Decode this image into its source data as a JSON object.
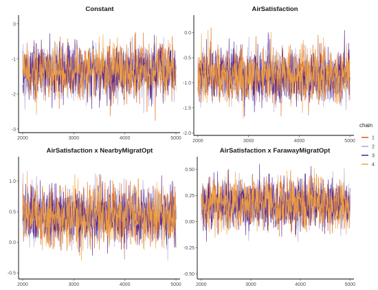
{
  "legend": {
    "title": "chain",
    "items": [
      {
        "label": "1",
        "color": "#d95f0e"
      },
      {
        "label": "2",
        "color": "#a9a2d6"
      },
      {
        "label": "3",
        "color": "#4b1d91"
      },
      {
        "label": "4",
        "color": "#f2a03d"
      }
    ]
  },
  "chart_data": [
    {
      "type": "line",
      "title": "Constant",
      "xlabel": "",
      "ylabel": "",
      "xlim": [
        1920,
        5080
      ],
      "ylim": [
        -3.1,
        0.25
      ],
      "x_ticks": [
        2000,
        3000,
        4000,
        5000
      ],
      "y_ticks": [
        0,
        -1,
        -2,
        -3
      ],
      "x_range": [
        2000,
        5000
      ],
      "draws": 3001,
      "series": [
        {
          "name": "1",
          "color": "#d95f0e",
          "mean": -1.35,
          "sd": 0.38,
          "min": -3.0,
          "max": 0.25
        },
        {
          "name": "2",
          "color": "#a9a2d6",
          "mean": -1.38,
          "sd": 0.37,
          "min": -3.0,
          "max": 0.1
        },
        {
          "name": "3",
          "color": "#4b1d91",
          "mean": -1.37,
          "sd": 0.38,
          "min": -3.05,
          "max": 0.0
        },
        {
          "name": "4",
          "color": "#f2a03d",
          "mean": -1.36,
          "sd": 0.38,
          "min": -2.85,
          "max": 0.15
        }
      ],
      "grid": false
    },
    {
      "type": "line",
      "title": "AirSatisfaction",
      "xlabel": "",
      "ylabel": "",
      "xlim": [
        1920,
        5080
      ],
      "ylim": [
        -2.05,
        0.35
      ],
      "x_ticks": [
        2000,
        3000,
        4000,
        5000
      ],
      "y_ticks": [
        0.0,
        -0.5,
        -1.0,
        -1.5,
        -2.0
      ],
      "x_range": [
        2000,
        5000
      ],
      "draws": 3001,
      "series": [
        {
          "name": "1",
          "color": "#d95f0e",
          "mean": -0.85,
          "sd": 0.27,
          "min": -1.9,
          "max": 0.1
        },
        {
          "name": "2",
          "color": "#a9a2d6",
          "mean": -0.86,
          "sd": 0.27,
          "min": -2.0,
          "max": 0.3
        },
        {
          "name": "3",
          "color": "#4b1d91",
          "mean": -0.85,
          "sd": 0.27,
          "min": -1.95,
          "max": 0.05
        },
        {
          "name": "4",
          "color": "#f2a03d",
          "mean": -0.85,
          "sd": 0.27,
          "min": -1.8,
          "max": 0.05
        }
      ],
      "grid": false
    },
    {
      "type": "line",
      "title": "AirSatisfaction x NearbyMigratOpt",
      "xlabel": "",
      "ylabel": "",
      "xlim": [
        1920,
        5080
      ],
      "ylim": [
        -0.6,
        1.4
      ],
      "x_ticks": [
        2000,
        3000,
        4000,
        5000
      ],
      "y_ticks": [
        1.0,
        0.5,
        0.0,
        -0.5
      ],
      "x_range": [
        2000,
        5000
      ],
      "draws": 3001,
      "series": [
        {
          "name": "1",
          "color": "#d95f0e",
          "mean": 0.42,
          "sd": 0.23,
          "min": -0.3,
          "max": 1.3
        },
        {
          "name": "2",
          "color": "#a9a2d6",
          "mean": 0.43,
          "sd": 0.23,
          "min": -0.3,
          "max": 1.25
        },
        {
          "name": "3",
          "color": "#4b1d91",
          "mean": 0.43,
          "sd": 0.23,
          "min": -0.35,
          "max": 1.3
        },
        {
          "name": "4",
          "color": "#f2a03d",
          "mean": 0.42,
          "sd": 0.23,
          "min": -0.5,
          "max": 1.35
        }
      ],
      "grid": false
    },
    {
      "type": "line",
      "title": "AirSatisfaction x FarawayMigratOpt",
      "xlabel": "",
      "ylabel": "",
      "xlim": [
        1920,
        5080
      ],
      "ylim": [
        -0.55,
        0.62
      ],
      "x_ticks": [
        2000,
        3000,
        4000,
        5000
      ],
      "y_ticks": [
        0.5,
        0.25,
        0.0,
        -0.25,
        -0.5
      ],
      "x_range": [
        2000,
        5000
      ],
      "draws": 3001,
      "series": [
        {
          "name": "1",
          "color": "#d95f0e",
          "mean": 0.17,
          "sd": 0.12,
          "min": -0.35,
          "max": 0.55
        },
        {
          "name": "2",
          "color": "#a9a2d6",
          "mean": 0.17,
          "sd": 0.12,
          "min": -0.4,
          "max": 0.55
        },
        {
          "name": "3",
          "color": "#4b1d91",
          "mean": 0.17,
          "sd": 0.12,
          "min": -0.48,
          "max": 0.58
        },
        {
          "name": "4",
          "color": "#f2a03d",
          "mean": 0.17,
          "sd": 0.12,
          "min": -0.35,
          "max": 0.6
        }
      ],
      "grid": false
    }
  ]
}
